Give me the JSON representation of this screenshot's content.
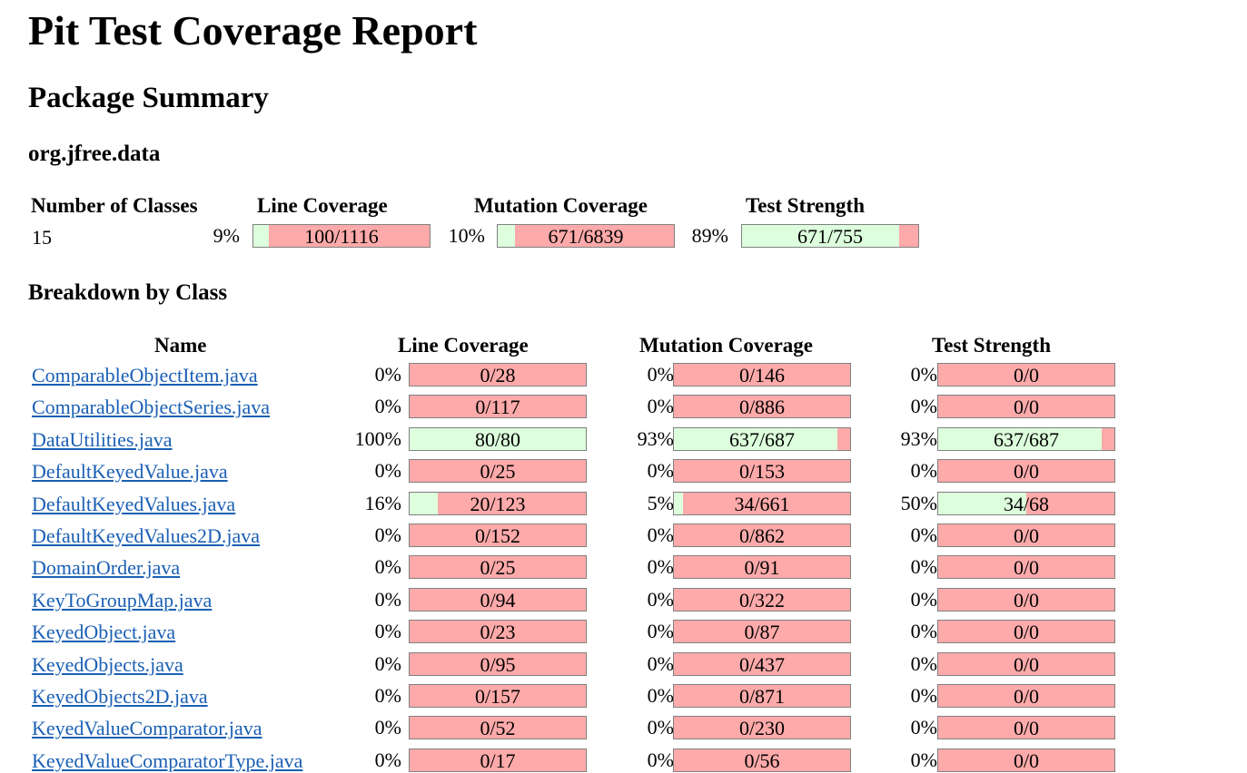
{
  "title": "Pit Test Coverage Report",
  "subtitle": "Package Summary",
  "package_name": "org.jfree.data",
  "summary": {
    "headers": {
      "classes": "Number of Classes",
      "line": "Line Coverage",
      "mutation": "Mutation Coverage",
      "strength": "Test Strength"
    },
    "classes": "15",
    "line": {
      "pct": "9%",
      "text": "100/1116",
      "fraction": 0.09
    },
    "mutation": {
      "pct": "10%",
      "text": "671/6839",
      "fraction": 0.1
    },
    "strength": {
      "pct": "89%",
      "text": "671/755",
      "fraction": 0.89
    }
  },
  "breakdown_title": "Breakdown by Class",
  "table": {
    "headers": {
      "name": "Name",
      "line": "Line Coverage",
      "mutation": "Mutation Coverage",
      "strength": "Test Strength"
    },
    "rows": [
      {
        "name": "ComparableObjectItem.java",
        "line": {
          "pct": "0%",
          "text": "0/28",
          "fraction": 0
        },
        "mutation": {
          "pct": "0%",
          "text": "0/146",
          "fraction": 0
        },
        "strength": {
          "pct": "0%",
          "text": "0/0",
          "fraction": 0
        }
      },
      {
        "name": "ComparableObjectSeries.java",
        "line": {
          "pct": "0%",
          "text": "0/117",
          "fraction": 0
        },
        "mutation": {
          "pct": "0%",
          "text": "0/886",
          "fraction": 0
        },
        "strength": {
          "pct": "0%",
          "text": "0/0",
          "fraction": 0
        }
      },
      {
        "name": "DataUtilities.java",
        "line": {
          "pct": "100%",
          "text": "80/80",
          "fraction": 1.0
        },
        "mutation": {
          "pct": "93%",
          "text": "637/687",
          "fraction": 0.93
        },
        "strength": {
          "pct": "93%",
          "text": "637/687",
          "fraction": 0.93
        }
      },
      {
        "name": "DefaultKeyedValue.java",
        "line": {
          "pct": "0%",
          "text": "0/25",
          "fraction": 0
        },
        "mutation": {
          "pct": "0%",
          "text": "0/153",
          "fraction": 0
        },
        "strength": {
          "pct": "0%",
          "text": "0/0",
          "fraction": 0
        }
      },
      {
        "name": "DefaultKeyedValues.java",
        "line": {
          "pct": "16%",
          "text": "20/123",
          "fraction": 0.16
        },
        "mutation": {
          "pct": "5%",
          "text": "34/661",
          "fraction": 0.05
        },
        "strength": {
          "pct": "50%",
          "text": "34/68",
          "fraction": 0.5
        }
      },
      {
        "name": "DefaultKeyedValues2D.java",
        "line": {
          "pct": "0%",
          "text": "0/152",
          "fraction": 0
        },
        "mutation": {
          "pct": "0%",
          "text": "0/862",
          "fraction": 0
        },
        "strength": {
          "pct": "0%",
          "text": "0/0",
          "fraction": 0
        }
      },
      {
        "name": "DomainOrder.java",
        "line": {
          "pct": "0%",
          "text": "0/25",
          "fraction": 0
        },
        "mutation": {
          "pct": "0%",
          "text": "0/91",
          "fraction": 0
        },
        "strength": {
          "pct": "0%",
          "text": "0/0",
          "fraction": 0
        }
      },
      {
        "name": "KeyToGroupMap.java",
        "line": {
          "pct": "0%",
          "text": "0/94",
          "fraction": 0
        },
        "mutation": {
          "pct": "0%",
          "text": "0/322",
          "fraction": 0
        },
        "strength": {
          "pct": "0%",
          "text": "0/0",
          "fraction": 0
        }
      },
      {
        "name": "KeyedObject.java",
        "line": {
          "pct": "0%",
          "text": "0/23",
          "fraction": 0
        },
        "mutation": {
          "pct": "0%",
          "text": "0/87",
          "fraction": 0
        },
        "strength": {
          "pct": "0%",
          "text": "0/0",
          "fraction": 0
        }
      },
      {
        "name": "KeyedObjects.java",
        "line": {
          "pct": "0%",
          "text": "0/95",
          "fraction": 0
        },
        "mutation": {
          "pct": "0%",
          "text": "0/437",
          "fraction": 0
        },
        "strength": {
          "pct": "0%",
          "text": "0/0",
          "fraction": 0
        }
      },
      {
        "name": "KeyedObjects2D.java",
        "line": {
          "pct": "0%",
          "text": "0/157",
          "fraction": 0
        },
        "mutation": {
          "pct": "0%",
          "text": "0/871",
          "fraction": 0
        },
        "strength": {
          "pct": "0%",
          "text": "0/0",
          "fraction": 0
        }
      },
      {
        "name": "KeyedValueComparator.java",
        "line": {
          "pct": "0%",
          "text": "0/52",
          "fraction": 0
        },
        "mutation": {
          "pct": "0%",
          "text": "0/230",
          "fraction": 0
        },
        "strength": {
          "pct": "0%",
          "text": "0/0",
          "fraction": 0
        }
      },
      {
        "name": "KeyedValueComparatorType.java",
        "line": {
          "pct": "0%",
          "text": "0/17",
          "fraction": 0
        },
        "mutation": {
          "pct": "0%",
          "text": "0/56",
          "fraction": 0
        },
        "strength": {
          "pct": "0%",
          "text": "0/0",
          "fraction": 0
        }
      }
    ]
  }
}
